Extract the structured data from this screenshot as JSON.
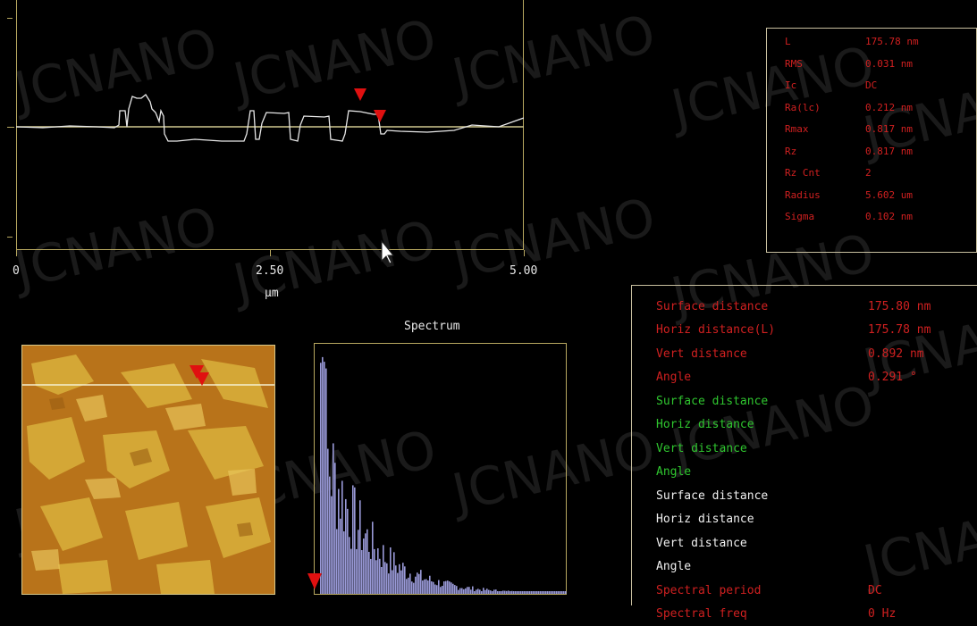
{
  "profile": {
    "x_ticks": [
      {
        "label": "0",
        "value": 0
      },
      {
        "label": "2.50",
        "value": 2.5
      },
      {
        "label": "5.00",
        "value": 5.0
      }
    ],
    "x_unit": "μm",
    "trace_color": "#e8e8e8",
    "cursor_color": "#e01010"
  },
  "stats": {
    "rows": [
      {
        "key": "L",
        "value": "175.78 nm"
      },
      {
        "key": "RMS",
        "value": "0.031 nm"
      },
      {
        "key": "Ic",
        "value": "DC"
      },
      {
        "key": "Ra(lc)",
        "value": "0.212 nm"
      },
      {
        "key": "Rmax",
        "value": "0.817 nm"
      },
      {
        "key": "Rz",
        "value": "0.817 nm"
      },
      {
        "key": "Rz Cnt",
        "value": "2"
      },
      {
        "key": "Radius",
        "value": "5.602 um"
      },
      {
        "key": "Sigma",
        "value": "0.102 nm"
      }
    ]
  },
  "spectrum": {
    "title": "Spectrum",
    "bar_color": "#9a9ad8"
  },
  "measurements": {
    "rows": [
      {
        "key": "Surface distance",
        "value": "175.80 nm",
        "color": "#d02020"
      },
      {
        "key": "Horiz distance(L)",
        "value": "175.78 nm",
        "color": "#d02020"
      },
      {
        "key": "Vert distance",
        "value": "0.892 nm",
        "color": "#d02020"
      },
      {
        "key": "Angle",
        "value": "0.291 °",
        "color": "#d02020"
      },
      {
        "key": "Surface distance",
        "value": "",
        "color": "#2fc62f"
      },
      {
        "key": "Horiz distance",
        "value": "",
        "color": "#2fc62f"
      },
      {
        "key": "Vert distance",
        "value": "",
        "color": "#2fc62f"
      },
      {
        "key": "Angle",
        "value": "",
        "color": "#2fc62f"
      },
      {
        "key": "Surface distance",
        "value": "",
        "color": "#f0f0f0"
      },
      {
        "key": "Horiz distance",
        "value": "",
        "color": "#f0f0f0"
      },
      {
        "key": "Vert distance",
        "value": "",
        "color": "#f0f0f0"
      },
      {
        "key": "Angle",
        "value": "",
        "color": "#f0f0f0"
      },
      {
        "key": "Spectral period",
        "value": "DC",
        "color": "#d02020"
      },
      {
        "key": "Spectral freq",
        "value": "0 Hz",
        "color": "#d02020"
      }
    ]
  },
  "watermark": "JCNANO",
  "icons": {
    "cursor": "mouse-pointer-icon",
    "marker": "red-triangle-marker-icon"
  }
}
